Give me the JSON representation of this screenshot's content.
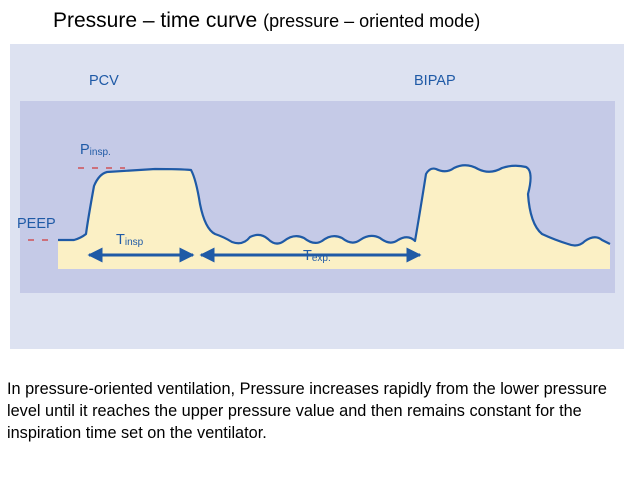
{
  "title": {
    "main": "Pressure – time curve",
    "sub": "(pressure – oriented mode)"
  },
  "diagram": {
    "mode_labels": {
      "left": "PCV",
      "right": "BIPAP"
    },
    "p_insp": {
      "base": "P",
      "sub": "insp."
    },
    "peep": "PEEP",
    "t_insp": {
      "base": "T",
      "sub": "insp"
    },
    "t_exp": {
      "base": "T",
      "sub": "exp."
    },
    "colors": {
      "outer_panel": "#dde2f1",
      "plot_panel": "#c5cae7",
      "fill": "#fbf0c5",
      "curve": "#1f5aa6",
      "dashes": "#d23b3b",
      "label_blue": "#1f5aa6"
    }
  },
  "caption": "In pressure-oriented ventilation, Pressure increases rapidly from the lower pressure level until it reaches the upper pressure value and then remains constant for the inspiration time set on the ventilator."
}
